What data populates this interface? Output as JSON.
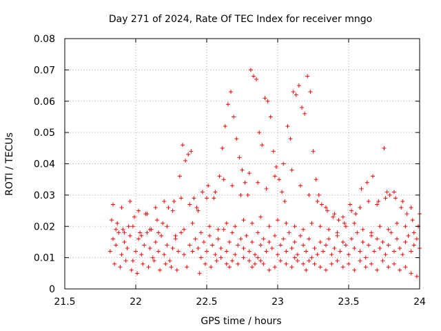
{
  "chart_data": {
    "type": "scatter",
    "title": "Day 271 of 2024, Rate Of TEC Index for receiver mngo",
    "xlabel": "GPS time / hours",
    "ylabel": "ROTI / TECUs",
    "xlim": [
      21.5,
      24
    ],
    "ylim": [
      0,
      0.08
    ],
    "x_ticks": [
      21.5,
      22,
      22.5,
      23,
      23.5,
      24
    ],
    "x_tick_labels": [
      "21.5",
      "22",
      "22.5",
      "23",
      "23.5",
      "24"
    ],
    "y_ticks": [
      0,
      0.01,
      0.02,
      0.03,
      0.04,
      0.05,
      0.06,
      0.07,
      0.08
    ],
    "y_tick_labels": [
      "0",
      "0.01",
      "0.02",
      "0.03",
      "0.04",
      "0.05",
      "0.06",
      "0.07",
      "0.08"
    ],
    "grid": true,
    "marker": "plus",
    "color": "#ff0000",
    "series": [
      {
        "name": "ROTI",
        "x": [
          21.82,
          21.84,
          21.86,
          21.88,
          21.9,
          21.92,
          21.94,
          21.96,
          21.98,
          22.0,
          22.02,
          22.04,
          22.06,
          22.08,
          22.1,
          22.12,
          22.14,
          22.16,
          22.18,
          22.2,
          22.22,
          22.24,
          22.26,
          22.28,
          22.3,
          22.32,
          22.34,
          22.36,
          22.38,
          22.4,
          22.42,
          22.44,
          22.46,
          22.48,
          22.5,
          22.52,
          22.54,
          22.56,
          22.58,
          22.6,
          22.62,
          22.64,
          22.66,
          22.68,
          22.7,
          22.72,
          22.74,
          22.76,
          22.78,
          22.8,
          22.82,
          22.84,
          22.86,
          22.88,
          22.9,
          22.92,
          22.94,
          22.96,
          22.98,
          23.0,
          23.02,
          23.04,
          23.06,
          23.08,
          23.1,
          23.12,
          23.14,
          23.16,
          23.18,
          23.2,
          23.22,
          23.24,
          23.26,
          23.28,
          23.3,
          23.32,
          23.34,
          23.36,
          23.38,
          23.4,
          23.42,
          23.44,
          23.46,
          23.48,
          23.5,
          23.52,
          23.54,
          23.56,
          23.58,
          23.6,
          23.62,
          23.64,
          23.66,
          23.68,
          23.7,
          23.72,
          23.74,
          23.76,
          23.78,
          23.8,
          23.82,
          23.84,
          23.86,
          23.88,
          23.9,
          23.92,
          23.94,
          23.96,
          23.98,
          24.0,
          21.83,
          21.87,
          21.91,
          21.95,
          21.99,
          22.03,
          22.07,
          22.11,
          22.15,
          22.19,
          22.23,
          22.27,
          22.31,
          22.33,
          22.35,
          22.37,
          22.39,
          22.41,
          22.43,
          22.47,
          22.51,
          22.55,
          22.59,
          22.61,
          22.63,
          22.65,
          22.67,
          22.69,
          22.71,
          22.73,
          22.75,
          22.77,
          22.79,
          22.81,
          22.83,
          22.85,
          22.87,
          22.89,
          22.91,
          22.93,
          22.95,
          22.97,
          22.99,
          23.01,
          23.03,
          23.05,
          23.07,
          23.09,
          23.11,
          23.13,
          23.15,
          23.17,
          23.19,
          23.21,
          23.23,
          23.25,
          23.27,
          23.29,
          23.31,
          23.35,
          23.39,
          23.43,
          23.47,
          23.51,
          23.55,
          23.59,
          23.63,
          23.67,
          23.71,
          23.75,
          23.77,
          23.79,
          23.83,
          23.87,
          23.91,
          23.95,
          23.99,
          21.85,
          21.89,
          21.93,
          21.97,
          22.01,
          22.05,
          22.09,
          22.13,
          22.17,
          22.21,
          22.25,
          22.29,
          22.45,
          22.49,
          22.53,
          22.57,
          22.6,
          22.64,
          22.66,
          22.68,
          22.72,
          22.76,
          22.8,
          22.82,
          22.84,
          22.86,
          22.88,
          22.9,
          22.94,
          22.98,
          23.02,
          23.06,
          23.1,
          23.12,
          23.14,
          23.18,
          23.2,
          23.22,
          23.26,
          23.3,
          23.34,
          23.38,
          23.42,
          23.46,
          23.5,
          23.54,
          23.58,
          23.62,
          23.66,
          23.7,
          23.74,
          23.78,
          23.82,
          23.86,
          23.9,
          23.94,
          23.98,
          21.84,
          21.9,
          21.96,
          22.02,
          22.08,
          22.14,
          22.2,
          22.26,
          22.32,
          22.38,
          22.44,
          22.5,
          22.56,
          22.62,
          22.68,
          22.74,
          22.8,
          22.86,
          22.92,
          22.98,
          23.04,
          23.1,
          23.16,
          23.22,
          23.28,
          23.34,
          23.4,
          23.46,
          23.52,
          23.58,
          23.64,
          23.7,
          23.76,
          23.82,
          23.88,
          23.94,
          24.0,
          21.86,
          21.92,
          21.98,
          22.04,
          22.1,
          22.16,
          22.22,
          22.28,
          22.34,
          22.4,
          22.46,
          22.52,
          22.58,
          22.64,
          22.7,
          22.76,
          22.82,
          22.88,
          22.94,
          23.0,
          23.06,
          23.12,
          23.18,
          23.24,
          23.3,
          23.36,
          23.42,
          23.48,
          23.54,
          23.6,
          23.66,
          23.72,
          23.78,
          23.84,
          23.9,
          23.96
        ],
        "y": [
          0.012,
          0.016,
          0.014,
          0.018,
          0.011,
          0.015,
          0.013,
          0.017,
          0.009,
          0.012,
          0.016,
          0.011,
          0.014,
          0.018,
          0.013,
          0.01,
          0.015,
          0.012,
          0.017,
          0.011,
          0.014,
          0.009,
          0.013,
          0.016,
          0.012,
          0.018,
          0.011,
          0.007,
          0.014,
          0.012,
          0.016,
          0.013,
          0.01,
          0.015,
          0.012,
          0.017,
          0.014,
          0.011,
          0.016,
          0.013,
          0.019,
          0.012,
          0.015,
          0.018,
          0.011,
          0.014,
          0.016,
          0.013,
          0.017,
          0.012,
          0.015,
          0.011,
          0.018,
          0.014,
          0.016,
          0.012,
          0.015,
          0.013,
          0.017,
          0.011,
          0.014,
          0.016,
          0.012,
          0.018,
          0.013,
          0.015,
          0.011,
          0.017,
          0.014,
          0.012,
          0.016,
          0.01,
          0.013,
          0.011,
          0.015,
          0.012,
          0.014,
          0.016,
          0.011,
          0.013,
          0.017,
          0.012,
          0.015,
          0.014,
          0.011,
          0.016,
          0.013,
          0.018,
          0.012,
          0.015,
          0.01,
          0.014,
          0.017,
          0.012,
          0.016,
          0.013,
          0.015,
          0.011,
          0.014,
          0.018,
          0.012,
          0.016,
          0.013,
          0.011,
          0.015,
          0.017,
          0.012,
          0.014,
          0.016,
          0.013,
          0.022,
          0.021,
          0.019,
          0.02,
          0.023,
          0.018,
          0.024,
          0.019,
          0.022,
          0.021,
          0.026,
          0.028,
          0.036,
          0.046,
          0.041,
          0.043,
          0.044,
          0.029,
          0.026,
          0.031,
          0.033,
          0.029,
          0.036,
          0.045,
          0.052,
          0.059,
          0.063,
          0.055,
          0.048,
          0.042,
          0.038,
          0.034,
          0.03,
          0.07,
          0.068,
          0.067,
          0.05,
          0.046,
          0.061,
          0.06,
          0.055,
          0.044,
          0.039,
          0.035,
          0.031,
          0.028,
          0.052,
          0.048,
          0.063,
          0.062,
          0.065,
          0.058,
          0.056,
          0.068,
          0.063,
          0.044,
          0.035,
          0.03,
          0.027,
          0.025,
          0.023,
          0.022,
          0.021,
          0.027,
          0.024,
          0.032,
          0.034,
          0.036,
          0.028,
          0.045,
          0.031,
          0.03,
          0.029,
          0.026,
          0.024,
          0.022,
          0.02,
          0.008,
          0.007,
          0.009,
          0.006,
          0.005,
          0.008,
          0.007,
          0.009,
          0.006,
          0.008,
          0.007,
          0.006,
          0.005,
          0.008,
          0.007,
          0.009,
          0.01,
          0.008,
          0.007,
          0.009,
          0.008,
          0.01,
          0.009,
          0.007,
          0.008,
          0.01,
          0.009,
          0.008,
          0.006,
          0.007,
          0.009,
          0.008,
          0.007,
          0.01,
          0.009,
          0.008,
          0.006,
          0.009,
          0.008,
          0.007,
          0.006,
          0.008,
          0.009,
          0.007,
          0.008,
          0.006,
          0.009,
          0.007,
          0.008,
          0.006,
          0.009,
          0.007,
          0.008,
          0.006,
          0.007,
          0.005,
          0.004,
          0.027,
          0.026,
          0.028,
          0.025,
          0.024,
          0.026,
          0.028,
          0.025,
          0.029,
          0.027,
          0.025,
          0.029,
          0.031,
          0.035,
          0.033,
          0.03,
          0.037,
          0.034,
          0.032,
          0.036,
          0.04,
          0.038,
          0.033,
          0.03,
          0.028,
          0.026,
          0.024,
          0.023,
          0.025,
          0.026,
          0.028,
          0.027,
          0.029,
          0.031,
          0.028,
          0.026,
          0.024,
          0.019,
          0.018,
          0.02,
          0.017,
          0.019,
          0.018,
          0.02,
          0.017,
          0.019,
          0.021,
          0.018,
          0.02,
          0.019,
          0.021,
          0.02,
          0.022,
          0.021,
          0.023,
          0.02,
          0.022,
          0.021,
          0.02,
          0.019,
          0.021,
          0.02,
          0.019,
          0.018,
          0.02,
          0.021,
          0.019,
          0.018,
          0.02,
          0.019,
          0.021,
          0.02,
          0.018
        ]
      }
    ]
  }
}
